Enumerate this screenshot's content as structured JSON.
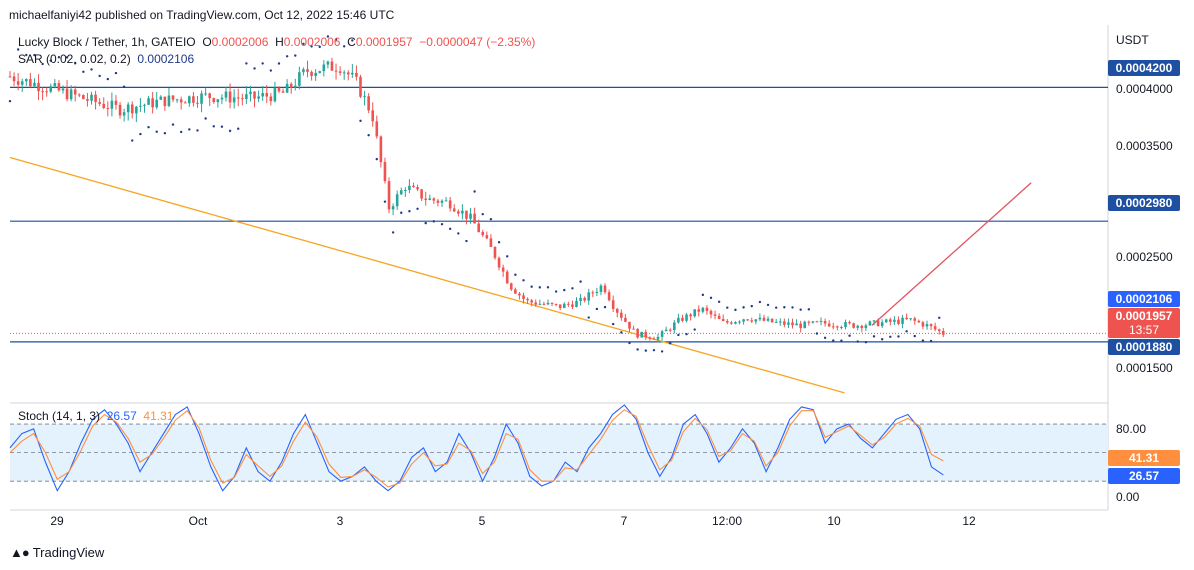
{
  "header": {
    "published": "michaelfaniyi42 published on TradingView.com, Oct 12, 2022 15:46 UTC"
  },
  "legend": {
    "symbol": "Lucky Block / Tether, 1h, GATEIO",
    "o_label": "O",
    "o_value": "0.0002006",
    "h_label": "H",
    "h_value": "0.0002006",
    "c_label": "C",
    "c_value": "0.0001957",
    "change": "−0.0000047 (−2.35%)",
    "sar_label": "SAR (0.02, 0.02, 0.2)",
    "sar_value": "0.0002106"
  },
  "stoch_legend": {
    "label": "Stoch (14, 1, 3)",
    "k_value": "26.57",
    "d_value": "41.31"
  },
  "footer": {
    "logo_text": "TradingView"
  },
  "colors": {
    "up": "#26a69a",
    "down": "#ef5350",
    "sar": "#1e3a8a",
    "hline": "#1e4fa0",
    "trend_support": "#f5a623",
    "trend_up": "#e05561",
    "k_line": "#2962ff",
    "d_line": "#ff8f3f",
    "stoch_band": "#e3f2fd"
  },
  "chart_data": [
    {
      "type": "candlestick",
      "symbol": "Lucky Block / Tether",
      "interval": "1h",
      "exchange": "GATEIO",
      "y_axis_unit": "USDT",
      "ylim": [
        0.000135,
        0.000475
      ],
      "y_ticks": [
        "0.0004000",
        "0.0003500",
        "0.0002500",
        "0.0001500"
      ],
      "x_ticks": [
        "29",
        "Oct",
        "3",
        "5",
        "7",
        "12:00",
        "10",
        "12"
      ],
      "horizontal_lines": [
        {
          "value": 0.00042,
          "label": "0.0004200"
        },
        {
          "value": 0.000298,
          "label": "0.0002980"
        },
        {
          "value": 0.000188,
          "label": "0.0001880"
        }
      ],
      "price_tags": {
        "sar": {
          "value": 0.0002106,
          "label": "0.0002106"
        },
        "last": {
          "value": 0.0001957,
          "label": "0.0001957",
          "countdown": "13:57"
        }
      },
      "trend_lines": [
        {
          "name": "descending",
          "from": [
            0,
            0.000356
          ],
          "to": [
            0.76,
            0.0001415
          ]
        },
        {
          "name": "ascending",
          "from": [
            0.785,
            0.000203
          ],
          "to": [
            0.93,
            0.000333
          ]
        }
      ],
      "price_path": [
        [
          0.0,
          0.00043
        ],
        [
          0.05,
          0.000415
        ],
        [
          0.1,
          0.0004
        ],
        [
          0.14,
          0.000408
        ],
        [
          0.18,
          0.000412
        ],
        [
          0.22,
          0.00041
        ],
        [
          0.25,
          0.000415
        ],
        [
          0.27,
          0.000435
        ],
        [
          0.3,
          0.00044
        ],
        [
          0.315,
          0.000425
        ],
        [
          0.33,
          0.000395
        ],
        [
          0.345,
          0.00031
        ],
        [
          0.36,
          0.00033
        ],
        [
          0.38,
          0.000318
        ],
        [
          0.4,
          0.000315
        ],
        [
          0.42,
          0.0003
        ],
        [
          0.44,
          0.00027
        ],
        [
          0.455,
          0.00024
        ],
        [
          0.47,
          0.000225
        ],
        [
          0.5,
          0.00022
        ],
        [
          0.52,
          0.000225
        ],
        [
          0.54,
          0.00024
        ],
        [
          0.55,
          0.00022
        ],
        [
          0.57,
          0.000195
        ],
        [
          0.59,
          0.000192
        ],
        [
          0.61,
          0.000208
        ],
        [
          0.63,
          0.000218
        ],
        [
          0.65,
          0.000205
        ],
        [
          0.67,
          0.00021
        ],
        [
          0.7,
          0.000205
        ],
        [
          0.72,
          0.000203
        ],
        [
          0.74,
          0.000205
        ],
        [
          0.77,
          0.000203
        ],
        [
          0.8,
          0.000206
        ],
        [
          0.82,
          0.000208
        ],
        [
          0.835,
          0.000203
        ],
        [
          0.85,
          0.0001957
        ]
      ]
    },
    {
      "type": "line",
      "indicator": "Stochastic",
      "params": "14, 1, 3",
      "ylim": [
        -5,
        100
      ],
      "y_ticks": [
        "80.00",
        "0.00"
      ],
      "band": [
        20,
        80
      ],
      "midline": 50,
      "last_k": 26.57,
      "last_d": 41.31,
      "series": [
        {
          "name": "%K",
          "values": [
            55,
            70,
            75,
            40,
            10,
            30,
            60,
            85,
            95,
            80,
            60,
            30,
            50,
            70,
            90,
            98,
            70,
            35,
            10,
            25,
            55,
            30,
            20,
            40,
            70,
            90,
            60,
            30,
            20,
            25,
            35,
            20,
            10,
            20,
            45,
            55,
            30,
            40,
            70,
            50,
            20,
            45,
            80,
            60,
            25,
            15,
            20,
            40,
            30,
            55,
            70,
            90,
            100,
            85,
            50,
            25,
            45,
            80,
            90,
            70,
            40,
            55,
            75,
            60,
            30,
            55,
            85,
            98,
            95,
            60,
            75,
            80,
            65,
            55,
            70,
            85,
            90,
            75,
            35,
            26.57
          ]
        },
        {
          "name": "%D",
          "values": [
            50,
            62,
            70,
            50,
            22,
            30,
            52,
            78,
            90,
            82,
            65,
            40,
            48,
            65,
            84,
            94,
            76,
            42,
            18,
            24,
            48,
            36,
            25,
            36,
            62,
            82,
            66,
            38,
            24,
            25,
            32,
            24,
            14,
            18,
            38,
            50,
            36,
            38,
            60,
            52,
            28,
            40,
            70,
            64,
            32,
            20,
            20,
            34,
            32,
            48,
            64,
            84,
            95,
            88,
            58,
            32,
            42,
            72,
            86,
            74,
            46,
            52,
            70,
            62,
            36,
            50,
            78,
            94,
            94,
            66,
            72,
            78,
            68,
            58,
            66,
            80,
            86,
            78,
            48,
            41.31
          ]
        }
      ]
    }
  ]
}
